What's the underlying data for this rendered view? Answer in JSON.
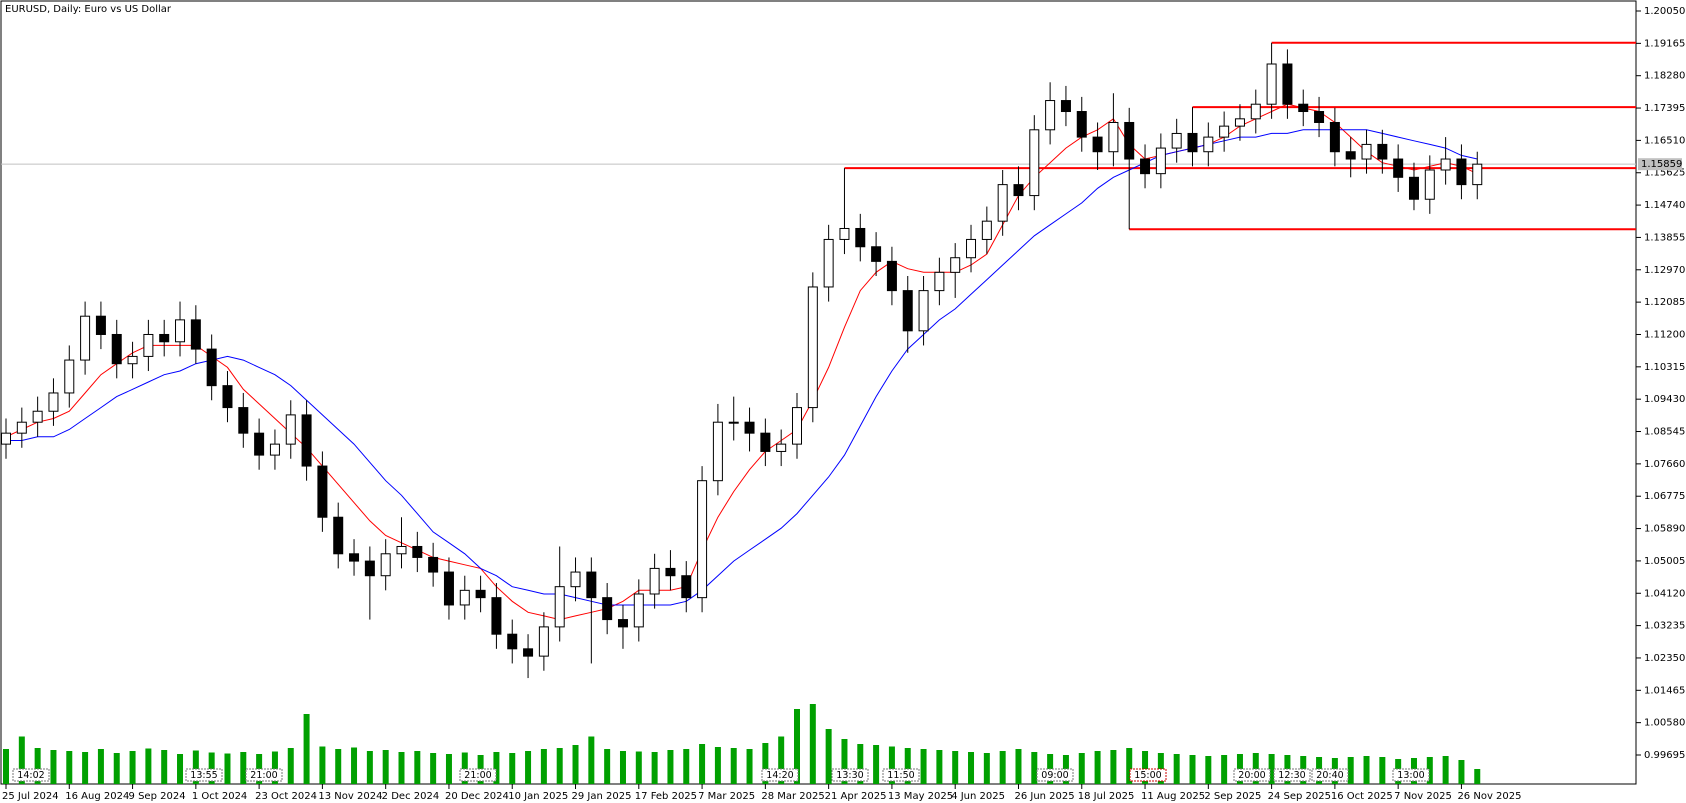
{
  "chart_data": {
    "type": "candlestick",
    "title": "EURUSD, Daily:  Euro vs US Dollar",
    "categories": [
      "25 Jul 2024",
      null,
      null,
      null,
      "16 Aug 2024",
      null,
      null,
      null,
      "9 Sep 2024",
      null,
      null,
      null,
      "1 Oct 2024",
      null,
      null,
      null,
      "23 Oct 2024",
      null,
      null,
      null,
      "13 Nov 2024",
      null,
      null,
      null,
      "2 Dec 2024",
      null,
      null,
      null,
      "20 Dec 2024",
      null,
      null,
      null,
      "10 Jan 2025",
      null,
      null,
      null,
      "29 Jan 2025",
      null,
      null,
      null,
      "17 Feb 2025",
      null,
      null,
      null,
      "7 Mar 2025",
      null,
      null,
      null,
      "28 Mar 2025",
      null,
      null,
      null,
      "21 Apr 2025",
      null,
      null,
      null,
      "13 May 2025",
      null,
      null,
      null,
      "4 Jun 2025",
      null,
      null,
      null,
      "26 Jun 2025",
      null,
      null,
      null,
      "18 Jul 2025",
      null,
      null,
      null,
      "11 Aug 2025",
      null,
      null,
      null,
      "2 Sep 2025",
      null,
      null,
      null,
      "24 Sep 2025",
      null,
      null,
      null,
      "16 Oct 2025",
      null,
      null,
      null,
      "7 Nov 2025",
      null,
      null,
      null,
      "26 Nov 2025",
      null
    ],
    "open": [
      1.082,
      1.085,
      1.088,
      1.091,
      1.096,
      1.105,
      1.117,
      1.112,
      1.104,
      1.106,
      1.112,
      1.11,
      1.116,
      1.108,
      1.098,
      1.092,
      1.085,
      1.079,
      1.082,
      1.09,
      1.076,
      1.062,
      1.052,
      1.05,
      1.046,
      1.052,
      1.054,
      1.051,
      1.047,
      1.038,
      1.042,
      1.04,
      1.03,
      1.026,
      1.024,
      1.032,
      1.043,
      1.047,
      1.04,
      1.034,
      1.032,
      1.041,
      1.048,
      1.046,
      1.04,
      1.072,
      1.088,
      1.088,
      1.085,
      1.08,
      1.082,
      1.092,
      1.125,
      1.138,
      1.141,
      1.136,
      1.132,
      1.124,
      1.113,
      1.124,
      1.129,
      1.133,
      1.138,
      1.143,
      1.153,
      1.15,
      1.168,
      1.176,
      1.173,
      1.166,
      1.162,
      1.17,
      1.16,
      1.156,
      1.163,
      1.167,
      1.162,
      1.166,
      1.169,
      1.171,
      1.175,
      1.186,
      1.175,
      1.173,
      1.17,
      1.162,
      1.16,
      1.164,
      1.16,
      1.155,
      1.149,
      1.157,
      1.16,
      1.153
    ],
    "high": [
      1.089,
      1.092,
      1.095,
      1.1,
      1.109,
      1.121,
      1.121,
      1.116,
      1.11,
      1.116,
      1.116,
      1.121,
      1.12,
      1.112,
      1.102,
      1.096,
      1.089,
      1.086,
      1.094,
      1.094,
      1.08,
      1.066,
      1.056,
      1.054,
      1.056,
      1.062,
      1.058,
      1.055,
      1.051,
      1.046,
      1.046,
      1.044,
      1.034,
      1.03,
      1.036,
      1.054,
      1.051,
      1.051,
      1.044,
      1.038,
      1.045,
      1.052,
      1.053,
      1.05,
      1.076,
      1.093,
      1.095,
      1.092,
      1.089,
      1.086,
      1.096,
      1.129,
      1.142,
      1.1575,
      1.145,
      1.14,
      1.136,
      1.128,
      1.128,
      1.133,
      1.137,
      1.142,
      1.147,
      1.157,
      1.158,
      1.172,
      1.181,
      1.18,
      1.177,
      1.17,
      1.178,
      1.174,
      1.164,
      1.167,
      1.171,
      1.1742,
      1.17,
      1.173,
      1.175,
      1.179,
      1.1918,
      1.19,
      1.179,
      1.177,
      1.174,
      1.166,
      1.168,
      1.168,
      1.164,
      1.159,
      1.161,
      1.166,
      1.164,
      1.162
    ],
    "low": [
      1.078,
      1.081,
      1.084,
      1.087,
      1.092,
      1.101,
      1.108,
      1.1,
      1.1,
      1.102,
      1.106,
      1.106,
      1.104,
      1.094,
      1.088,
      1.081,
      1.075,
      1.075,
      1.078,
      1.072,
      1.058,
      1.048,
      1.046,
      1.034,
      1.042,
      1.048,
      1.047,
      1.043,
      1.034,
      1.034,
      1.036,
      1.026,
      1.022,
      1.018,
      1.02,
      1.028,
      1.039,
      1.022,
      1.03,
      1.026,
      1.028,
      1.037,
      1.042,
      1.036,
      1.036,
      1.068,
      1.083,
      1.08,
      1.076,
      1.076,
      1.078,
      1.088,
      1.121,
      1.134,
      1.132,
      1.128,
      1.12,
      1.107,
      1.109,
      1.12,
      1.122,
      1.129,
      1.134,
      1.139,
      1.146,
      1.146,
      1.164,
      1.169,
      1.162,
      1.157,
      1.158,
      1.1408,
      1.152,
      1.152,
      1.159,
      1.158,
      1.158,
      1.162,
      1.165,
      1.167,
      1.171,
      1.171,
      1.169,
      1.166,
      1.158,
      1.155,
      1.156,
      1.156,
      1.151,
      1.146,
      1.145,
      1.153,
      1.149,
      1.149
    ],
    "close": [
      1.085,
      1.088,
      1.091,
      1.096,
      1.105,
      1.117,
      1.112,
      1.104,
      1.106,
      1.112,
      1.11,
      1.116,
      1.108,
      1.098,
      1.092,
      1.085,
      1.079,
      1.082,
      1.09,
      1.076,
      1.062,
      1.052,
      1.05,
      1.046,
      1.052,
      1.054,
      1.051,
      1.047,
      1.038,
      1.042,
      1.04,
      1.03,
      1.026,
      1.024,
      1.032,
      1.043,
      1.047,
      1.04,
      1.034,
      1.032,
      1.041,
      1.048,
      1.046,
      1.04,
      1.072,
      1.088,
      1.088,
      1.085,
      1.08,
      1.082,
      1.092,
      1.125,
      1.138,
      1.141,
      1.136,
      1.132,
      1.124,
      1.113,
      1.124,
      1.129,
      1.133,
      1.138,
      1.143,
      1.153,
      1.15,
      1.168,
      1.176,
      1.173,
      1.166,
      1.162,
      1.17,
      1.16,
      1.156,
      1.163,
      1.167,
      1.162,
      1.166,
      1.169,
      1.171,
      1.175,
      1.186,
      1.175,
      1.173,
      1.17,
      1.162,
      1.16,
      1.164,
      1.16,
      1.155,
      1.149,
      1.157,
      1.16,
      1.153,
      1.15859
    ],
    "up_color": "#ffffff",
    "down_color": "#000000",
    "moving_averages": [
      {
        "color": "#ff0000",
        "values": [
          1.084,
          1.086,
          1.088,
          1.089,
          1.091,
          1.096,
          1.101,
          1.104,
          1.107,
          1.109,
          1.109,
          1.109,
          1.109,
          1.106,
          1.103,
          1.097,
          1.093,
          1.089,
          1.085,
          1.081,
          1.076,
          1.071,
          1.066,
          1.061,
          1.057,
          1.055,
          1.053,
          1.051,
          1.05,
          1.049,
          1.048,
          1.043,
          1.039,
          1.036,
          1.035,
          1.034,
          1.035,
          1.036,
          1.037,
          1.039,
          1.042,
          1.042,
          1.042,
          1.043,
          1.053,
          1.062,
          1.069,
          1.075,
          1.08,
          1.083,
          1.086,
          1.094,
          1.103,
          1.114,
          1.124,
          1.129,
          1.132,
          1.13,
          1.129,
          1.129,
          1.129,
          1.131,
          1.134,
          1.142,
          1.15,
          1.155,
          1.159,
          1.163,
          1.166,
          1.168,
          1.171,
          1.164,
          1.16,
          1.161,
          1.162,
          1.163,
          1.164,
          1.166,
          1.169,
          1.171,
          1.173,
          1.175,
          1.174,
          1.173,
          1.17,
          1.166,
          1.162,
          1.159,
          1.158,
          1.157,
          1.158,
          1.159,
          1.158,
          1.156
        ]
      },
      {
        "color": "#0000ff",
        "values": [
          1.083,
          1.083,
          1.084,
          1.084,
          1.086,
          1.089,
          1.092,
          1.095,
          1.097,
          1.099,
          1.101,
          1.102,
          1.104,
          1.105,
          1.106,
          1.105,
          1.103,
          1.101,
          1.098,
          1.094,
          1.09,
          1.086,
          1.082,
          1.077,
          1.072,
          1.068,
          1.063,
          1.058,
          1.055,
          1.052,
          1.048,
          1.046,
          1.043,
          1.042,
          1.041,
          1.041,
          1.04,
          1.039,
          1.038,
          1.038,
          1.038,
          1.038,
          1.038,
          1.039,
          1.042,
          1.046,
          1.05,
          1.053,
          1.056,
          1.059,
          1.063,
          1.068,
          1.073,
          1.079,
          1.087,
          1.095,
          1.102,
          1.108,
          1.112,
          1.116,
          1.119,
          1.123,
          1.127,
          1.131,
          1.135,
          1.139,
          1.142,
          1.145,
          1.148,
          1.152,
          1.155,
          1.157,
          1.159,
          1.161,
          1.162,
          1.163,
          1.164,
          1.165,
          1.166,
          1.166,
          1.167,
          1.167,
          1.168,
          1.168,
          1.168,
          1.168,
          1.168,
          1.167,
          1.166,
          1.165,
          1.164,
          1.163,
          1.161,
          1.16
        ]
      }
    ],
    "levels": {
      "color": "#ff0000",
      "values": [
        1.1918,
        1.1742,
        1.1575,
        1.1408
      ]
    },
    "volume": {
      "color": "#00a000",
      "values": [
        70000,
        95000,
        72000,
        68000,
        66000,
        64000,
        70000,
        62000,
        66000,
        71000,
        68000,
        60000,
        67000,
        63000,
        61000,
        64000,
        60000,
        65000,
        72000,
        140000,
        75000,
        70000,
        73000,
        66000,
        68000,
        64000,
        66000,
        62000,
        60000,
        63000,
        58000,
        64000,
        62000,
        66000,
        70000,
        72000,
        78000,
        95000,
        70000,
        66000,
        65000,
        64000,
        68000,
        70000,
        80000,
        74000,
        72000,
        70000,
        82000,
        95000,
        150000,
        160000,
        110000,
        90000,
        80000,
        78000,
        75000,
        72000,
        70000,
        68000,
        66000,
        64000,
        62000,
        66000,
        70000,
        64000,
        60000,
        58000,
        62000,
        66000,
        68000,
        72000,
        66000,
        62000,
        60000,
        58000,
        56000,
        58000,
        60000,
        62000,
        60000,
        58000,
        56000,
        54000,
        52000,
        54000,
        56000,
        54000,
        50000,
        52000,
        54000,
        56000,
        48000,
        30000
      ]
    },
    "event_labels": [
      "14:02",
      "13:55",
      "21:00",
      "21:00",
      "14:20",
      "13:30",
      "11:50",
      "09:00",
      "15:00",
      "20:00",
      "12:30",
      "20:40",
      "13:00"
    ],
    "ylim": [
      0.99695,
      1.2005
    ],
    "yticks": [
      {
        "value": 1.2005,
        "label": "1.20050"
      },
      1.19165,
      {
        "value": 1.1828,
        "label": "1.18280"
      },
      1.17395,
      {
        "value": 1.1651,
        "label": "1.16510"
      },
      1.15625,
      {
        "value": 1.1474,
        "label": "1.14740"
      },
      1.13855,
      {
        "value": 1.1297,
        "label": "1.12970"
      },
      1.12085,
      {
        "value": 1.112,
        "label": "1.11200"
      },
      1.10315,
      {
        "value": 1.0943,
        "label": "1.09430"
      },
      1.08545,
      {
        "value": 1.0766,
        "label": "1.07660"
      },
      1.06775,
      {
        "value": 1.0589,
        "label": "1.05890"
      },
      1.05005,
      {
        "value": 1.0412,
        "label": "1.04120"
      },
      1.03235,
      {
        "value": 1.0235,
        "label": "1.02350"
      },
      1.01465,
      {
        "value": 1.0058,
        "label": "1.00580"
      },
      0.99695
    ]
  }
}
